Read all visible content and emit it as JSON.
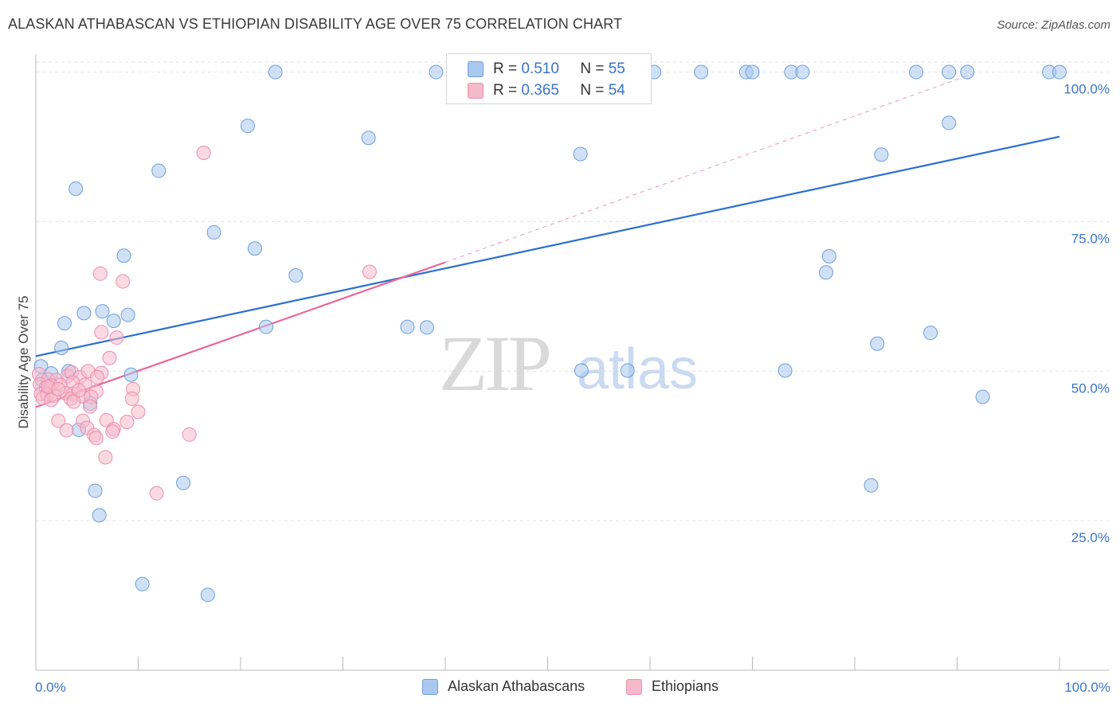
{
  "header": {
    "title": "ALASKAN ATHABASCAN VS ETHIOPIAN DISABILITY AGE OVER 75 CORRELATION CHART",
    "source": "Source: ZipAtlas.com"
  },
  "colors": {
    "blue_fill": "#a9c8ef",
    "blue_stroke": "#6f9fd8",
    "blue_line": "#2b6fd0",
    "pink_fill": "#f5b9cc",
    "pink_stroke": "#ec8fae",
    "pink_line": "#e8679a",
    "axis_label": "#3a74c9",
    "grid": "#e2e2e2"
  },
  "legend_top": {
    "rows": [
      {
        "series": "blue",
        "r_label": "R =",
        "r_value": "0.510",
        "n_label": "N =",
        "n_value": "55"
      },
      {
        "series": "pink",
        "r_label": "R =",
        "r_value": "0.365",
        "n_label": "N =",
        "n_value": "54"
      }
    ]
  },
  "legend_bottom": {
    "items": [
      {
        "series": "blue",
        "label": "Alaskan Athabascans"
      },
      {
        "series": "pink",
        "label": "Ethiopians"
      }
    ]
  },
  "chart_data": {
    "type": "scatter",
    "title": "ALASKAN ATHABASCAN VS ETHIOPIAN DISABILITY AGE OVER 75 CORRELATION CHART",
    "xlabel": "",
    "ylabel": "Disability Age Over 75",
    "xlim": [
      0,
      100
    ],
    "ylim": [
      0,
      103
    ],
    "x_tick_labels": [
      "0.0%",
      "100.0%"
    ],
    "y_ticks": [
      25,
      50,
      75,
      100
    ],
    "y_tick_labels": [
      "25.0%",
      "50.0%",
      "75.0%",
      "100.0%"
    ],
    "grid": true,
    "watermark": "ZIPatlas",
    "series": [
      {
        "name": "Alaskan Athabascans",
        "color": "blue",
        "trend": {
          "x": [
            0,
            100
          ],
          "y": [
            52.5,
            89.2
          ],
          "style": "solid"
        },
        "points": [
          [
            23.4,
            100
          ],
          [
            39.1,
            100
          ],
          [
            46.2,
            100
          ],
          [
            60.4,
            100
          ],
          [
            65.0,
            100
          ],
          [
            69.4,
            100
          ],
          [
            70.0,
            100
          ],
          [
            73.8,
            100
          ],
          [
            74.9,
            100
          ],
          [
            86.0,
            100
          ],
          [
            89.2,
            100
          ],
          [
            91.0,
            100
          ],
          [
            99.0,
            100
          ],
          [
            100.0,
            100
          ],
          [
            20.7,
            91.0
          ],
          [
            32.5,
            89.0
          ],
          [
            53.2,
            86.3
          ],
          [
            89.2,
            91.5
          ],
          [
            82.6,
            86.2
          ],
          [
            12.0,
            83.5
          ],
          [
            3.9,
            80.5
          ],
          [
            17.4,
            73.2
          ],
          [
            21.4,
            70.5
          ],
          [
            8.6,
            69.3
          ],
          [
            25.4,
            66.0
          ],
          [
            77.5,
            69.2
          ],
          [
            77.2,
            66.5
          ],
          [
            4.7,
            59.7
          ],
          [
            6.5,
            60.0
          ],
          [
            7.6,
            58.4
          ],
          [
            9.0,
            59.4
          ],
          [
            2.8,
            58.0
          ],
          [
            36.3,
            57.4
          ],
          [
            38.2,
            57.3
          ],
          [
            22.5,
            57.4
          ],
          [
            87.4,
            56.4
          ],
          [
            82.2,
            54.6
          ],
          [
            2.5,
            53.9
          ],
          [
            0.5,
            50.8
          ],
          [
            1.5,
            49.6
          ],
          [
            3.2,
            50.0
          ],
          [
            9.3,
            49.4
          ],
          [
            53.3,
            50.1
          ],
          [
            57.8,
            50.1
          ],
          [
            73.2,
            50.1
          ],
          [
            92.5,
            45.7
          ],
          [
            5.3,
            44.6
          ],
          [
            4.2,
            40.2
          ],
          [
            14.4,
            31.3
          ],
          [
            5.8,
            30.0
          ],
          [
            81.6,
            30.9
          ],
          [
            6.2,
            25.9
          ],
          [
            10.4,
            14.4
          ],
          [
            16.8,
            12.6
          ],
          [
            0.6,
            48.5
          ]
        ]
      },
      {
        "name": "Ethiopians",
        "color": "pink",
        "trend": {
          "x": [
            0,
            40
          ],
          "y": [
            44.0,
            68.2
          ],
          "style": "solid"
        },
        "trend_extension": {
          "x": [
            40,
            92
          ],
          "y": [
            68.2,
            100.0
          ],
          "style": "dashed"
        },
        "points": [
          [
            16.4,
            86.5
          ],
          [
            32.6,
            66.6
          ],
          [
            6.3,
            66.3
          ],
          [
            8.5,
            65.0
          ],
          [
            6.4,
            56.5
          ],
          [
            7.9,
            55.6
          ],
          [
            7.2,
            52.2
          ],
          [
            0.3,
            49.5
          ],
          [
            1.2,
            48.6
          ],
          [
            2.0,
            48.5
          ],
          [
            3.1,
            49.2
          ],
          [
            3.5,
            49.8
          ],
          [
            4.3,
            49.0
          ],
          [
            5.1,
            50.0
          ],
          [
            6.4,
            49.7
          ],
          [
            6.0,
            49.0
          ],
          [
            0.4,
            47.8
          ],
          [
            1.0,
            47.3
          ],
          [
            1.5,
            47.6
          ],
          [
            2.4,
            47.7
          ],
          [
            3.6,
            48.1
          ],
          [
            4.8,
            47.7
          ],
          [
            9.5,
            47.0
          ],
          [
            5.9,
            46.6
          ],
          [
            0.5,
            46.2
          ],
          [
            1.1,
            46.1
          ],
          [
            1.8,
            45.9
          ],
          [
            2.9,
            46.3
          ],
          [
            3.6,
            46.2
          ],
          [
            4.6,
            45.8
          ],
          [
            0.7,
            45.5
          ],
          [
            1.5,
            45.2
          ],
          [
            3.4,
            45.4
          ],
          [
            5.4,
            45.7
          ],
          [
            9.4,
            45.4
          ],
          [
            3.7,
            44.9
          ],
          [
            5.3,
            44.1
          ],
          [
            2.2,
            41.7
          ],
          [
            4.6,
            41.7
          ],
          [
            6.9,
            41.8
          ],
          [
            8.9,
            41.5
          ],
          [
            3.0,
            40.1
          ],
          [
            5.0,
            40.5
          ],
          [
            7.6,
            40.3
          ],
          [
            7.5,
            39.9
          ],
          [
            5.7,
            39.3
          ],
          [
            5.9,
            38.8
          ],
          [
            15.0,
            39.4
          ],
          [
            6.8,
            35.6
          ],
          [
            11.8,
            29.6
          ],
          [
            10.0,
            43.2
          ],
          [
            1.2,
            47.4
          ],
          [
            2.2,
            47.0
          ],
          [
            4.2,
            46.8
          ]
        ]
      }
    ]
  }
}
